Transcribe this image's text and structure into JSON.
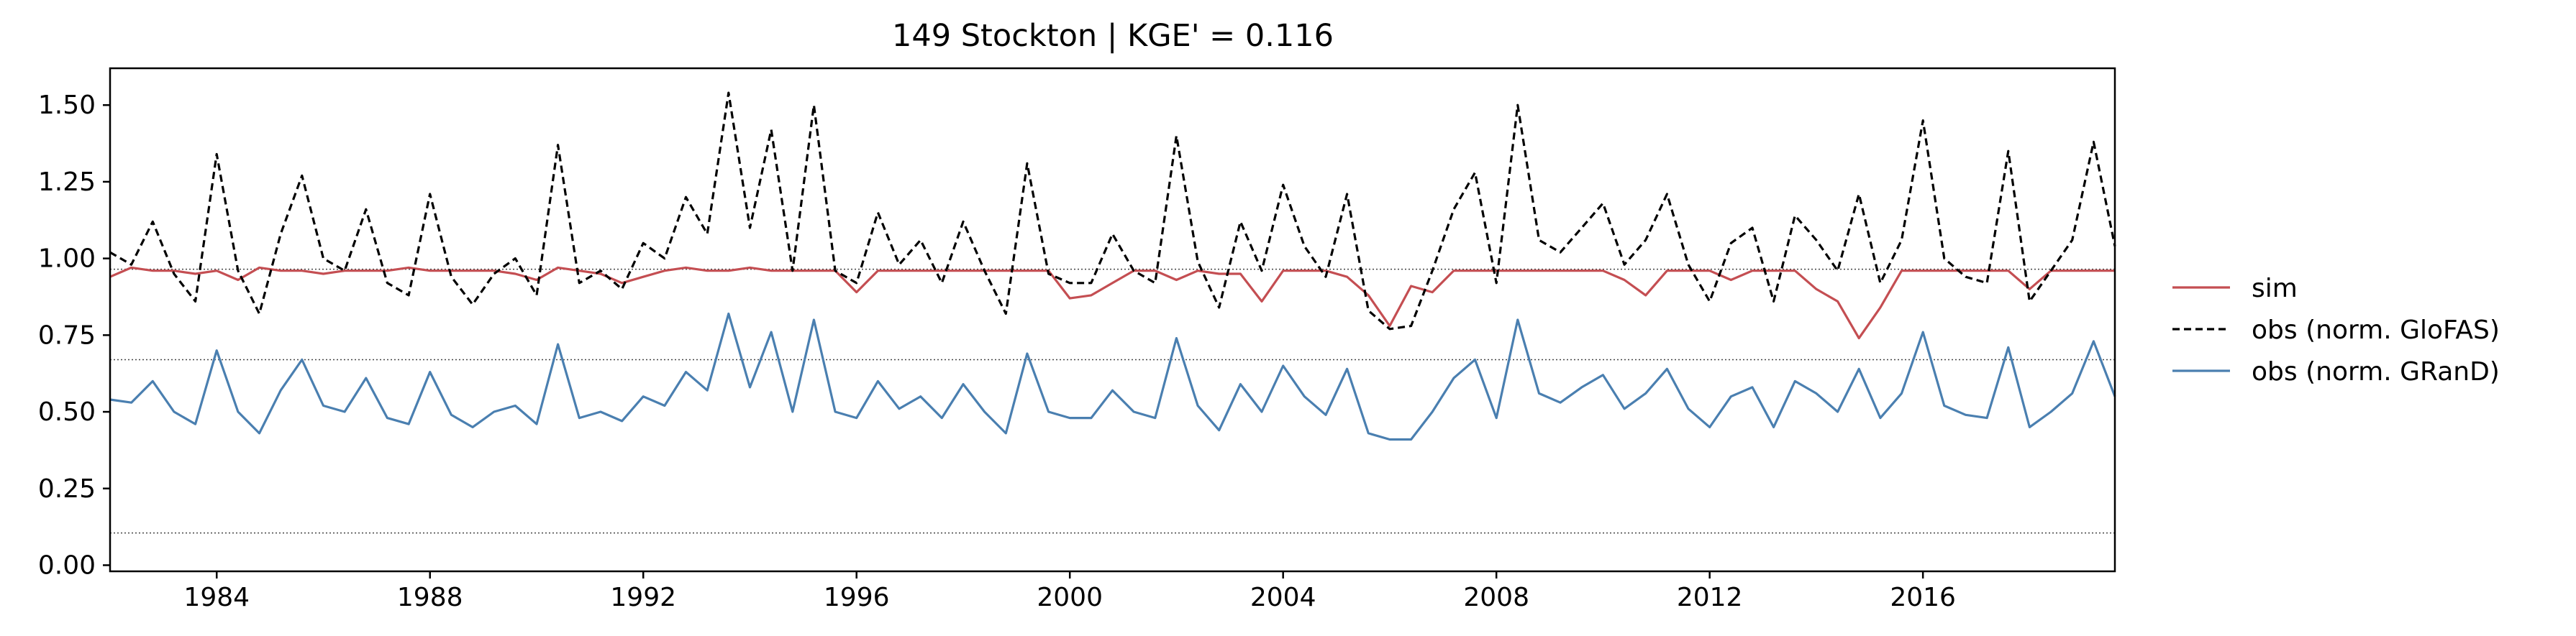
{
  "chart_data": {
    "type": "line",
    "title": "149  Stockton | KGE' = 0.116",
    "xlabel": "",
    "ylabel": "",
    "xlim": [
      1982.0,
      2019.6
    ],
    "ylim": [
      -0.02,
      1.62
    ],
    "x_ticks": [
      "1984",
      "1988",
      "1992",
      "1996",
      "2000",
      "2004",
      "2008",
      "2012",
      "2016"
    ],
    "y_ticks": [
      "0.00",
      "0.25",
      "0.50",
      "0.75",
      "1.00",
      "1.25",
      "1.50"
    ],
    "grid": false,
    "legend_position": "outside right",
    "reference_lines": [
      0.965,
      0.67,
      0.105
    ],
    "series": [
      {
        "name": "sim",
        "color": "#c44e52",
        "style": "solid",
        "x": [
          1982.0,
          1982.4,
          1982.8,
          1983.2,
          1983.6,
          1984.0,
          1984.4,
          1984.8,
          1985.2,
          1985.6,
          1986.0,
          1986.4,
          1986.8,
          1987.2,
          1987.6,
          1988.0,
          1988.4,
          1988.8,
          1989.2,
          1989.6,
          1990.0,
          1990.4,
          1990.8,
          1991.2,
          1991.6,
          1992.0,
          1992.4,
          1992.8,
          1993.2,
          1993.6,
          1994.0,
          1994.4,
          1994.8,
          1995.2,
          1995.6,
          1996.0,
          1996.4,
          1996.8,
          1997.2,
          1997.6,
          1998.0,
          1998.4,
          1998.8,
          1999.2,
          1999.6,
          2000.0,
          2000.4,
          2000.8,
          2001.2,
          2001.6,
          2002.0,
          2002.4,
          2002.8,
          2003.2,
          2003.6,
          2004.0,
          2004.4,
          2004.8,
          2005.2,
          2005.6,
          2006.0,
          2006.4,
          2006.8,
          2007.2,
          2007.6,
          2008.0,
          2008.4,
          2008.8,
          2009.2,
          2009.6,
          2010.0,
          2010.4,
          2010.8,
          2011.2,
          2011.6,
          2012.0,
          2012.4,
          2012.8,
          2013.2,
          2013.6,
          2014.0,
          2014.4,
          2014.8,
          2015.2,
          2015.6,
          2016.0,
          2016.4,
          2016.8,
          2017.2,
          2017.6,
          2018.0,
          2018.4,
          2018.8,
          2019.2,
          2019.6
        ],
        "y": [
          0.94,
          0.97,
          0.96,
          0.96,
          0.95,
          0.96,
          0.93,
          0.97,
          0.96,
          0.96,
          0.95,
          0.96,
          0.96,
          0.96,
          0.97,
          0.96,
          0.96,
          0.96,
          0.96,
          0.95,
          0.93,
          0.97,
          0.96,
          0.95,
          0.92,
          0.94,
          0.96,
          0.97,
          0.96,
          0.96,
          0.97,
          0.96,
          0.96,
          0.96,
          0.96,
          0.89,
          0.96,
          0.96,
          0.96,
          0.96,
          0.96,
          0.96,
          0.96,
          0.96,
          0.96,
          0.87,
          0.88,
          0.92,
          0.96,
          0.96,
          0.93,
          0.96,
          0.95,
          0.95,
          0.86,
          0.96,
          0.96,
          0.96,
          0.94,
          0.88,
          0.78,
          0.91,
          0.89,
          0.96,
          0.96,
          0.96,
          0.96,
          0.96,
          0.96,
          0.96,
          0.96,
          0.93,
          0.88,
          0.96,
          0.96,
          0.96,
          0.93,
          0.96,
          0.96,
          0.96,
          0.9,
          0.86,
          0.74,
          0.84,
          0.96,
          0.96,
          0.96,
          0.96,
          0.96,
          0.96,
          0.9,
          0.96,
          0.96,
          0.96,
          0.96
        ]
      },
      {
        "name": "obs (norm. GloFAS)",
        "color": "#000000",
        "style": "dashed",
        "x": [
          1982.0,
          1982.4,
          1982.8,
          1983.2,
          1983.6,
          1984.0,
          1984.4,
          1984.8,
          1985.2,
          1985.6,
          1986.0,
          1986.4,
          1986.8,
          1987.2,
          1987.6,
          1988.0,
          1988.4,
          1988.8,
          1989.2,
          1989.6,
          1990.0,
          1990.4,
          1990.8,
          1991.2,
          1991.6,
          1992.0,
          1992.4,
          1992.8,
          1993.2,
          1993.6,
          1994.0,
          1994.4,
          1994.8,
          1995.2,
          1995.6,
          1996.0,
          1996.4,
          1996.8,
          1997.2,
          1997.6,
          1998.0,
          1998.4,
          1998.8,
          1999.2,
          1999.6,
          2000.0,
          2000.4,
          2000.8,
          2001.2,
          2001.6,
          2002.0,
          2002.4,
          2002.8,
          2003.2,
          2003.6,
          2004.0,
          2004.4,
          2004.8,
          2005.2,
          2005.6,
          2006.0,
          2006.4,
          2006.8,
          2007.2,
          2007.6,
          2008.0,
          2008.4,
          2008.8,
          2009.2,
          2009.6,
          2010.0,
          2010.4,
          2010.8,
          2011.2,
          2011.6,
          2012.0,
          2012.4,
          2012.8,
          2013.2,
          2013.6,
          2014.0,
          2014.4,
          2014.8,
          2015.2,
          2015.6,
          2016.0,
          2016.4,
          2016.8,
          2017.2,
          2017.6,
          2018.0,
          2018.4,
          2018.8,
          2019.2,
          2019.6
        ],
        "y": [
          1.02,
          0.98,
          1.12,
          0.95,
          0.86,
          1.34,
          0.96,
          0.82,
          1.08,
          1.27,
          1.0,
          0.96,
          1.16,
          0.92,
          0.88,
          1.21,
          0.94,
          0.85,
          0.95,
          1.0,
          0.88,
          1.37,
          0.92,
          0.96,
          0.9,
          1.05,
          1.0,
          1.2,
          1.08,
          1.54,
          1.1,
          1.42,
          0.96,
          1.5,
          0.96,
          0.92,
          1.15,
          0.98,
          1.06,
          0.92,
          1.12,
          0.96,
          0.82,
          1.31,
          0.95,
          0.92,
          0.92,
          1.08,
          0.96,
          0.92,
          1.4,
          0.99,
          0.84,
          1.12,
          0.96,
          1.24,
          1.04,
          0.94,
          1.21,
          0.83,
          0.77,
          0.78,
          0.96,
          1.16,
          1.28,
          0.92,
          1.5,
          1.06,
          1.02,
          1.1,
          1.18,
          0.98,
          1.06,
          1.21,
          0.98,
          0.86,
          1.05,
          1.1,
          0.86,
          1.14,
          1.06,
          0.96,
          1.21,
          0.92,
          1.06,
          1.45,
          1.0,
          0.94,
          0.92,
          1.35,
          0.86,
          0.96,
          1.06,
          1.38,
          1.04
        ]
      },
      {
        "name": "obs (norm. GRanD)",
        "color": "#4a7fb0",
        "style": "solid",
        "x": [
          1982.0,
          1982.4,
          1982.8,
          1983.2,
          1983.6,
          1984.0,
          1984.4,
          1984.8,
          1985.2,
          1985.6,
          1986.0,
          1986.4,
          1986.8,
          1987.2,
          1987.6,
          1988.0,
          1988.4,
          1988.8,
          1989.2,
          1989.6,
          1990.0,
          1990.4,
          1990.8,
          1991.2,
          1991.6,
          1992.0,
          1992.4,
          1992.8,
          1993.2,
          1993.6,
          1994.0,
          1994.4,
          1994.8,
          1995.2,
          1995.6,
          1996.0,
          1996.4,
          1996.8,
          1997.2,
          1997.6,
          1998.0,
          1998.4,
          1998.8,
          1999.2,
          1999.6,
          2000.0,
          2000.4,
          2000.8,
          2001.2,
          2001.6,
          2002.0,
          2002.4,
          2002.8,
          2003.2,
          2003.6,
          2004.0,
          2004.4,
          2004.8,
          2005.2,
          2005.6,
          2006.0,
          2006.4,
          2006.8,
          2007.2,
          2007.6,
          2008.0,
          2008.4,
          2008.8,
          2009.2,
          2009.6,
          2010.0,
          2010.4,
          2010.8,
          2011.2,
          2011.6,
          2012.0,
          2012.4,
          2012.8,
          2013.2,
          2013.6,
          2014.0,
          2014.4,
          2014.8,
          2015.2,
          2015.6,
          2016.0,
          2016.4,
          2016.8,
          2017.2,
          2017.6,
          2018.0,
          2018.4,
          2018.8,
          2019.2,
          2019.6
        ],
        "y": [
          0.54,
          0.53,
          0.6,
          0.5,
          0.46,
          0.7,
          0.5,
          0.43,
          0.57,
          0.67,
          0.52,
          0.5,
          0.61,
          0.48,
          0.46,
          0.63,
          0.49,
          0.45,
          0.5,
          0.52,
          0.46,
          0.72,
          0.48,
          0.5,
          0.47,
          0.55,
          0.52,
          0.63,
          0.57,
          0.82,
          0.58,
          0.76,
          0.5,
          0.8,
          0.5,
          0.48,
          0.6,
          0.51,
          0.55,
          0.48,
          0.59,
          0.5,
          0.43,
          0.69,
          0.5,
          0.48,
          0.48,
          0.57,
          0.5,
          0.48,
          0.74,
          0.52,
          0.44,
          0.59,
          0.5,
          0.65,
          0.55,
          0.49,
          0.64,
          0.43,
          0.41,
          0.41,
          0.5,
          0.61,
          0.67,
          0.48,
          0.8,
          0.56,
          0.53,
          0.58,
          0.62,
          0.51,
          0.56,
          0.64,
          0.51,
          0.45,
          0.55,
          0.58,
          0.45,
          0.6,
          0.56,
          0.5,
          0.64,
          0.48,
          0.56,
          0.76,
          0.52,
          0.49,
          0.48,
          0.71,
          0.45,
          0.5,
          0.56,
          0.73,
          0.55
        ]
      }
    ]
  }
}
